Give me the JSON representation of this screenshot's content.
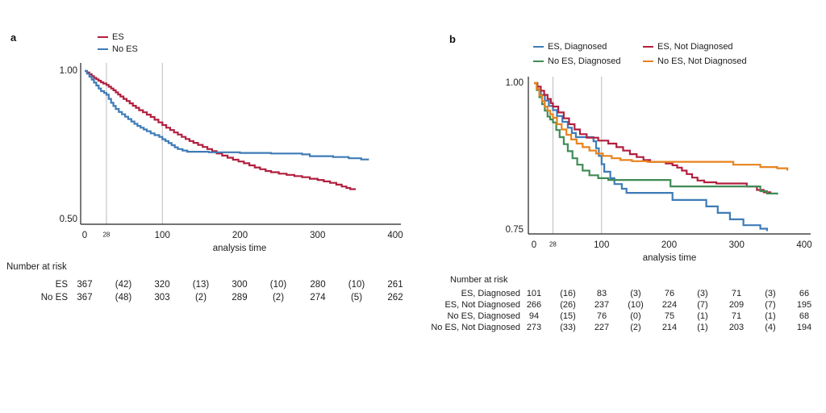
{
  "figure": {
    "background": "#ffffff",
    "axis_color": "#222222",
    "grid_color": "#bbbbbb",
    "text_color": "#1c1c1c"
  },
  "chart_data": [
    {
      "id": "a",
      "type": "line",
      "subtype": "kaplan-meier-step",
      "panel_label": "a",
      "xlabel": "analysis time",
      "xlim": [
        0,
        400
      ],
      "xticks": [
        "0",
        "100",
        "200",
        "300",
        "400"
      ],
      "xtick_values": [
        0,
        100,
        200,
        300,
        400
      ],
      "minor_xtick": {
        "label": "28",
        "value": 28
      },
      "yticks": [
        {
          "label": "1.00",
          "value": 1.0
        },
        {
          "label": "0.50",
          "value": 0.5
        }
      ],
      "ylim": [
        0.5,
        1.0
      ],
      "gridlines_x": [
        28,
        100
      ],
      "legend_position": "top",
      "series": [
        {
          "name": "ES",
          "color": "#b11f3e",
          "points": [
            [
              0,
              1.0
            ],
            [
              3,
              0.995
            ],
            [
              6,
              0.989
            ],
            [
              9,
              0.983
            ],
            [
              12,
              0.977
            ],
            [
              15,
              0.972
            ],
            [
              18,
              0.967
            ],
            [
              21,
              0.962
            ],
            [
              24,
              0.958
            ],
            [
              28,
              0.953
            ],
            [
              31,
              0.947
            ],
            [
              34,
              0.941
            ],
            [
              37,
              0.935
            ],
            [
              40,
              0.928
            ],
            [
              43,
              0.921
            ],
            [
              46,
              0.914
            ],
            [
              50,
              0.906
            ],
            [
              54,
              0.899
            ],
            [
              58,
              0.891
            ],
            [
              62,
              0.883
            ],
            [
              66,
              0.876
            ],
            [
              70,
              0.868
            ],
            [
              75,
              0.861
            ],
            [
              80,
              0.853
            ],
            [
              85,
              0.845
            ],
            [
              90,
              0.836
            ],
            [
              95,
              0.827
            ],
            [
              100,
              0.818
            ],
            [
              105,
              0.809
            ],
            [
              110,
              0.801
            ],
            [
              115,
              0.793
            ],
            [
              120,
              0.786
            ],
            [
              125,
              0.778
            ],
            [
              130,
              0.771
            ],
            [
              135,
              0.764
            ],
            [
              140,
              0.758
            ],
            [
              146,
              0.751
            ],
            [
              152,
              0.744
            ],
            [
              158,
              0.737
            ],
            [
              164,
              0.73
            ],
            [
              170,
              0.722
            ],
            [
              177,
              0.715
            ],
            [
              184,
              0.708
            ],
            [
              191,
              0.701
            ],
            [
              198,
              0.695
            ],
            [
              205,
              0.689
            ],
            [
              212,
              0.682
            ],
            [
              219,
              0.675
            ],
            [
              226,
              0.669
            ],
            [
              233,
              0.663
            ],
            [
              240,
              0.659
            ],
            [
              250,
              0.654
            ],
            [
              260,
              0.65
            ],
            [
              270,
              0.646
            ],
            [
              280,
              0.642
            ],
            [
              290,
              0.637
            ],
            [
              300,
              0.633
            ],
            [
              308,
              0.628
            ],
            [
              316,
              0.623
            ],
            [
              324,
              0.617
            ],
            [
              331,
              0.611
            ],
            [
              337,
              0.606
            ],
            [
              342,
              0.602
            ],
            [
              348,
              0.599
            ]
          ]
        },
        {
          "name": "No ES",
          "color": "#3e7bb6",
          "points": [
            [
              0,
              1.0
            ],
            [
              3,
              0.991
            ],
            [
              6,
              0.981
            ],
            [
              9,
              0.971
            ],
            [
              12,
              0.961
            ],
            [
              15,
              0.951
            ],
            [
              18,
              0.941
            ],
            [
              21,
              0.932
            ],
            [
              25,
              0.926
            ],
            [
              28,
              0.92
            ],
            [
              31,
              0.906
            ],
            [
              34,
              0.893
            ],
            [
              37,
              0.882
            ],
            [
              40,
              0.872
            ],
            [
              44,
              0.862
            ],
            [
              48,
              0.854
            ],
            [
              52,
              0.846
            ],
            [
              56,
              0.838
            ],
            [
              60,
              0.83
            ],
            [
              64,
              0.822
            ],
            [
              68,
              0.815
            ],
            [
              72,
              0.809
            ],
            [
              76,
              0.803
            ],
            [
              80,
              0.797
            ],
            [
              85,
              0.79
            ],
            [
              90,
              0.784
            ],
            [
              96,
              0.778
            ],
            [
              100,
              0.77
            ],
            [
              104,
              0.764
            ],
            [
              108,
              0.757
            ],
            [
              112,
              0.75
            ],
            [
              116,
              0.743
            ],
            [
              120,
              0.737
            ],
            [
              126,
              0.732
            ],
            [
              132,
              0.728
            ],
            [
              160,
              0.726
            ],
            [
              200,
              0.724
            ],
            [
              240,
              0.722
            ],
            [
              280,
              0.719
            ],
            [
              290,
              0.713
            ],
            [
              320,
              0.71
            ],
            [
              340,
              0.706
            ],
            [
              356,
              0.702
            ],
            [
              365,
              0.699
            ]
          ]
        }
      ],
      "risk_table": {
        "heading": "Number at risk",
        "time_columns": [
          0,
          50,
          100,
          150,
          200,
          250,
          300,
          350,
          400
        ],
        "rows": [
          {
            "label": "ES",
            "values": [
              "367",
              "(42)",
              "320",
              "(13)",
              "300",
              "(10)",
              "280",
              "(10)",
              "261"
            ]
          },
          {
            "label": "No ES",
            "values": [
              "367",
              "(48)",
              "303",
              "(2)",
              "289",
              "(2)",
              "274",
              "(5)",
              "262"
            ]
          }
        ]
      }
    },
    {
      "id": "b",
      "type": "line",
      "subtype": "kaplan-meier-step",
      "panel_label": "b",
      "xlabel": "analysis time",
      "xlim": [
        0,
        400
      ],
      "xticks": [
        "0",
        "100",
        "200",
        "300",
        "400"
      ],
      "xtick_values": [
        0,
        100,
        200,
        300,
        400
      ],
      "minor_xtick": {
        "label": "28",
        "value": 28
      },
      "yticks": [
        {
          "label": "1.00",
          "value": 1.0
        },
        {
          "label": "0.75",
          "value": 0.75
        }
      ],
      "ylim": [
        0.75,
        1.0
      ],
      "gridlines_x": [
        28,
        100
      ],
      "legend_position": "top",
      "series": [
        {
          "name": "ES, Diagnosed",
          "color": "#3e7bb6",
          "points": [
            [
              0,
              1.0
            ],
            [
              5,
              0.99
            ],
            [
              10,
              0.98
            ],
            [
              16,
              0.97
            ],
            [
              22,
              0.961
            ],
            [
              28,
              0.954
            ],
            [
              34,
              0.944
            ],
            [
              42,
              0.934
            ],
            [
              50,
              0.924
            ],
            [
              56,
              0.915
            ],
            [
              62,
              0.908
            ],
            [
              88,
              0.901
            ],
            [
              92,
              0.889
            ],
            [
              96,
              0.876
            ],
            [
              100,
              0.862
            ],
            [
              104,
              0.849
            ],
            [
              113,
              0.838
            ],
            [
              119,
              0.828
            ],
            [
              130,
              0.82
            ],
            [
              137,
              0.813
            ],
            [
              205,
              0.801
            ],
            [
              255,
              0.79
            ],
            [
              272,
              0.779
            ],
            [
              290,
              0.768
            ],
            [
              310,
              0.758
            ],
            [
              335,
              0.752
            ],
            [
              345,
              0.748
            ]
          ]
        },
        {
          "name": "ES, Not Diagnosed",
          "color": "#b11f3e",
          "points": [
            [
              0,
              1.0
            ],
            [
              5,
              0.994
            ],
            [
              10,
              0.987
            ],
            [
              15,
              0.98
            ],
            [
              20,
              0.973
            ],
            [
              25,
              0.966
            ],
            [
              28,
              0.96
            ],
            [
              36,
              0.95
            ],
            [
              44,
              0.94
            ],
            [
              52,
              0.93
            ],
            [
              60,
              0.921
            ],
            [
              68,
              0.913
            ],
            [
              78,
              0.907
            ],
            [
              95,
              0.902
            ],
            [
              110,
              0.897
            ],
            [
              122,
              0.891
            ],
            [
              132,
              0.885
            ],
            [
              142,
              0.879
            ],
            [
              152,
              0.874
            ],
            [
              162,
              0.869
            ],
            [
              172,
              0.866
            ],
            [
              195,
              0.863
            ],
            [
              205,
              0.86
            ],
            [
              212,
              0.856
            ],
            [
              219,
              0.851
            ],
            [
              226,
              0.845
            ],
            [
              234,
              0.839
            ],
            [
              242,
              0.834
            ],
            [
              252,
              0.831
            ],
            [
              270,
              0.829
            ],
            [
              315,
              0.824
            ],
            [
              330,
              0.818
            ],
            [
              340,
              0.814
            ],
            [
              350,
              0.811
            ]
          ]
        },
        {
          "name": "No ES, Diagnosed",
          "color": "#3f8c55",
          "points": [
            [
              0,
              1.0
            ],
            [
              4,
              0.988
            ],
            [
              8,
              0.976
            ],
            [
              12,
              0.964
            ],
            [
              16,
              0.953
            ],
            [
              20,
              0.943
            ],
            [
              24,
              0.938
            ],
            [
              28,
              0.933
            ],
            [
              33,
              0.92
            ],
            [
              38,
              0.908
            ],
            [
              44,
              0.896
            ],
            [
              50,
              0.884
            ],
            [
              57,
              0.872
            ],
            [
              64,
              0.861
            ],
            [
              72,
              0.851
            ],
            [
              82,
              0.843
            ],
            [
              95,
              0.838
            ],
            [
              110,
              0.835
            ],
            [
              202,
              0.824
            ],
            [
              335,
              0.816
            ],
            [
              345,
              0.812
            ],
            [
              360,
              0.81
            ]
          ]
        },
        {
          "name": "No ES, Not Diagnosed",
          "color": "#e8821d",
          "points": [
            [
              0,
              1.0
            ],
            [
              4,
              0.99
            ],
            [
              8,
              0.979
            ],
            [
              12,
              0.969
            ],
            [
              16,
              0.96
            ],
            [
              20,
              0.953
            ],
            [
              24,
              0.947
            ],
            [
              28,
              0.941
            ],
            [
              34,
              0.93
            ],
            [
              41,
              0.921
            ],
            [
              48,
              0.912
            ],
            [
              55,
              0.904
            ],
            [
              63,
              0.897
            ],
            [
              72,
              0.891
            ],
            [
              82,
              0.885
            ],
            [
              92,
              0.88
            ],
            [
              102,
              0.876
            ],
            [
              115,
              0.872
            ],
            [
              128,
              0.869
            ],
            [
              145,
              0.867
            ],
            [
              168,
              0.866
            ],
            [
              295,
              0.861
            ],
            [
              335,
              0.857
            ],
            [
              360,
              0.855
            ],
            [
              375,
              0.851
            ]
          ]
        }
      ],
      "risk_table": {
        "heading": "Number at risk",
        "time_columns": [
          0,
          50,
          100,
          150,
          200,
          250,
          300,
          350,
          400
        ],
        "rows": [
          {
            "label": "ES, Diagnosed",
            "values": [
              "101",
              "(16)",
              "83",
              "(3)",
              "76",
              "(3)",
              "71",
              "(3)",
              "66"
            ]
          },
          {
            "label": "ES, Not Diagnosed",
            "values": [
              "266",
              "(26)",
              "237",
              "(10)",
              "224",
              "(7)",
              "209",
              "(7)",
              "195"
            ]
          },
          {
            "label": "No ES, Diagnosed",
            "values": [
              "94",
              "(15)",
              "76",
              "(0)",
              "75",
              "(1)",
              "71",
              "(1)",
              "68"
            ]
          },
          {
            "label": "No ES, Not Diagnosed",
            "values": [
              "273",
              "(33)",
              "227",
              "(2)",
              "214",
              "(1)",
              "203",
              "(4)",
              "194"
            ]
          }
        ]
      }
    }
  ]
}
